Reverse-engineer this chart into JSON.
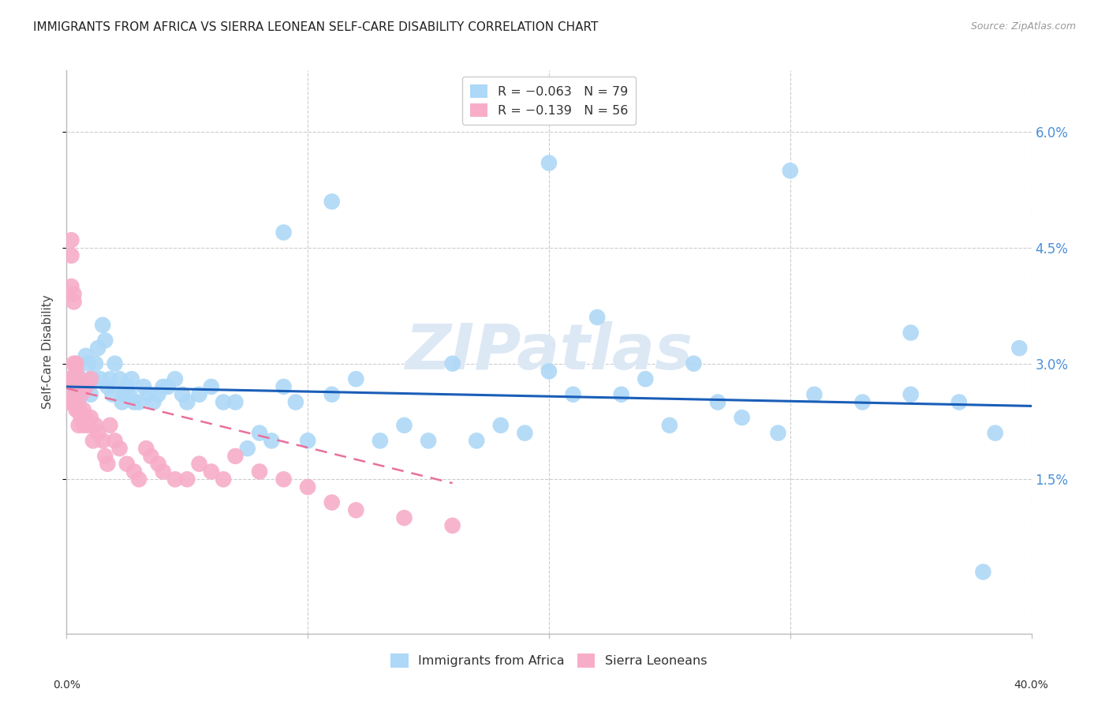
{
  "title": "IMMIGRANTS FROM AFRICA VS SIERRA LEONEAN SELF-CARE DISABILITY CORRELATION CHART",
  "source": "Source: ZipAtlas.com",
  "ylabel": "Self-Care Disability",
  "ytick_labels": [
    "6.0%",
    "4.5%",
    "3.0%",
    "1.5%"
  ],
  "ytick_values": [
    0.06,
    0.045,
    0.03,
    0.015
  ],
  "xlim": [
    0.0,
    0.4
  ],
  "ylim": [
    -0.005,
    0.068
  ],
  "legend_entries": [
    {
      "label": "R = −0.063   N = 79",
      "color": "#add8f7"
    },
    {
      "label": "R = −0.139   N = 56",
      "color": "#f7adc8"
    }
  ],
  "series1_color": "#add8f7",
  "series2_color": "#f7adc8",
  "trendline1_color": "#1a5eb8",
  "trendline2_color": "#e8709a",
  "watermark": "ZIPatlas",
  "watermark_color": "#dde8f5",
  "background_color": "#ffffff",
  "grid_color": "#cccccc",
  "axis_color": "#bbbbbb",
  "title_color": "#333333",
  "right_tick_color": "#4a90d9",
  "series1": {
    "x": [
      0.001,
      0.002,
      0.003,
      0.004,
      0.005,
      0.005,
      0.006,
      0.007,
      0.008,
      0.009,
      0.01,
      0.011,
      0.012,
      0.013,
      0.014,
      0.015,
      0.016,
      0.017,
      0.018,
      0.019,
      0.02,
      0.022,
      0.023,
      0.024,
      0.025,
      0.026,
      0.027,
      0.028,
      0.03,
      0.032,
      0.034,
      0.036,
      0.038,
      0.04,
      0.042,
      0.045,
      0.048,
      0.05,
      0.055,
      0.06,
      0.065,
      0.07,
      0.075,
      0.08,
      0.085,
      0.09,
      0.095,
      0.1,
      0.11,
      0.12,
      0.13,
      0.14,
      0.15,
      0.16,
      0.17,
      0.18,
      0.19,
      0.2,
      0.21,
      0.22,
      0.23,
      0.24,
      0.25,
      0.26,
      0.27,
      0.28,
      0.295,
      0.31,
      0.33,
      0.35,
      0.37,
      0.385,
      0.395,
      0.2,
      0.3,
      0.35,
      0.09,
      0.11,
      0.38
    ],
    "y": [
      0.028,
      0.027,
      0.026,
      0.026,
      0.027,
      0.025,
      0.028,
      0.027,
      0.031,
      0.03,
      0.026,
      0.028,
      0.03,
      0.032,
      0.028,
      0.035,
      0.033,
      0.027,
      0.028,
      0.026,
      0.03,
      0.028,
      0.025,
      0.026,
      0.027,
      0.026,
      0.028,
      0.025,
      0.025,
      0.027,
      0.026,
      0.025,
      0.026,
      0.027,
      0.027,
      0.028,
      0.026,
      0.025,
      0.026,
      0.027,
      0.025,
      0.025,
      0.019,
      0.021,
      0.02,
      0.027,
      0.025,
      0.02,
      0.026,
      0.028,
      0.02,
      0.022,
      0.02,
      0.03,
      0.02,
      0.022,
      0.021,
      0.029,
      0.026,
      0.036,
      0.026,
      0.028,
      0.022,
      0.03,
      0.025,
      0.023,
      0.021,
      0.026,
      0.025,
      0.026,
      0.025,
      0.021,
      0.032,
      0.056,
      0.055,
      0.034,
      0.047,
      0.051,
      0.003
    ]
  },
  "series2": {
    "x": [
      0.001,
      0.001,
      0.001,
      0.002,
      0.002,
      0.002,
      0.003,
      0.003,
      0.003,
      0.004,
      0.004,
      0.004,
      0.005,
      0.005,
      0.005,
      0.006,
      0.006,
      0.007,
      0.007,
      0.008,
      0.008,
      0.009,
      0.01,
      0.01,
      0.011,
      0.012,
      0.013,
      0.015,
      0.016,
      0.017,
      0.018,
      0.02,
      0.022,
      0.025,
      0.028,
      0.03,
      0.033,
      0.035,
      0.038,
      0.04,
      0.045,
      0.05,
      0.055,
      0.06,
      0.065,
      0.07,
      0.08,
      0.09,
      0.1,
      0.11,
      0.12,
      0.14,
      0.16,
      0.002,
      0.003,
      0.004
    ],
    "y": [
      0.028,
      0.027,
      0.025,
      0.046,
      0.044,
      0.028,
      0.039,
      0.03,
      0.025,
      0.029,
      0.027,
      0.024,
      0.028,
      0.024,
      0.022,
      0.026,
      0.023,
      0.024,
      0.022,
      0.027,
      0.023,
      0.022,
      0.028,
      0.023,
      0.02,
      0.022,
      0.021,
      0.02,
      0.018,
      0.017,
      0.022,
      0.02,
      0.019,
      0.017,
      0.016,
      0.015,
      0.019,
      0.018,
      0.017,
      0.016,
      0.015,
      0.015,
      0.017,
      0.016,
      0.015,
      0.018,
      0.016,
      0.015,
      0.014,
      0.012,
      0.011,
      0.01,
      0.009,
      0.04,
      0.038,
      0.03
    ]
  },
  "trendline1_x": [
    0.0,
    0.4
  ],
  "trendline1_y": [
    0.027,
    0.0245
  ],
  "trendline2_x": [
    0.0,
    0.16
  ],
  "trendline2_y": [
    0.0268,
    0.0145
  ]
}
